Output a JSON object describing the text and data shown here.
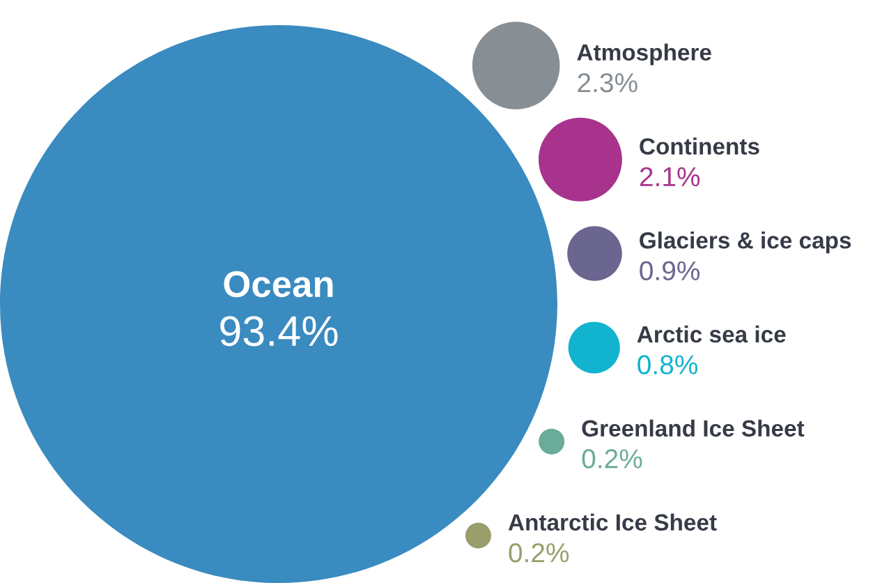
{
  "chart_data": {
    "type": "other",
    "categories": [
      "Ocean",
      "Atmosphere",
      "Continents",
      "Glaciers & ice caps",
      "Arctic sea ice",
      "Greenland Ice Sheet",
      "Antarctic Ice Sheet"
    ],
    "values": [
      93.4,
      2.3,
      2.1,
      0.9,
      0.8,
      0.2,
      0.2
    ],
    "value_labels": [
      "93.4%",
      "2.3%",
      "2.1%",
      "0.9%",
      "0.8%",
      "0.2%",
      "0.2%"
    ],
    "colors": [
      "#3a8bc0",
      "#878e94",
      "#a8338c",
      "#6a6690",
      "#12b3cf",
      "#6aab9a",
      "#9a9e6a"
    ]
  }
}
